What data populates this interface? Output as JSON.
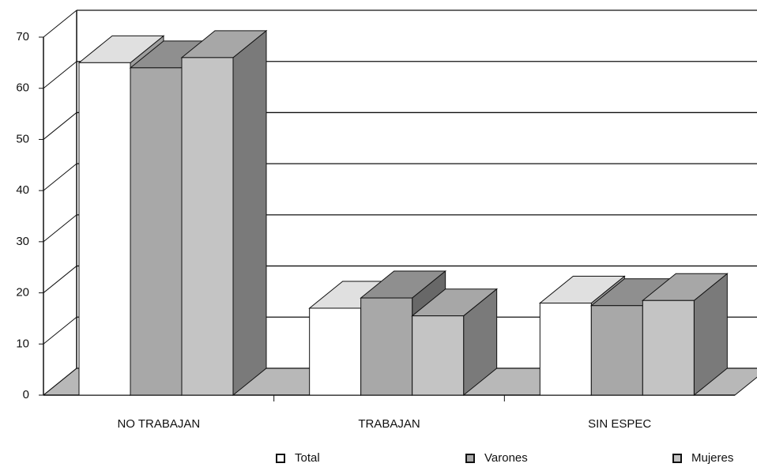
{
  "chart_data": {
    "type": "bar3d",
    "categories": [
      "NO TRABAJAN",
      "TRABAJAN",
      "SIN ESPEC"
    ],
    "series": [
      {
        "name": "Total",
        "color": "#ffffff",
        "values": [
          65,
          17,
          18
        ]
      },
      {
        "name": "Varones",
        "color": "#a8a8a8",
        "values": [
          64,
          19,
          17.5
        ]
      },
      {
        "name": "Mujeres",
        "color": "#c4c4c4",
        "values": [
          66,
          15.5,
          18.5
        ]
      }
    ],
    "ylim": [
      0,
      70
    ],
    "yticks": [
      0,
      10,
      20,
      30,
      40,
      50,
      60,
      70
    ],
    "grid": true,
    "legend": "bottom"
  }
}
